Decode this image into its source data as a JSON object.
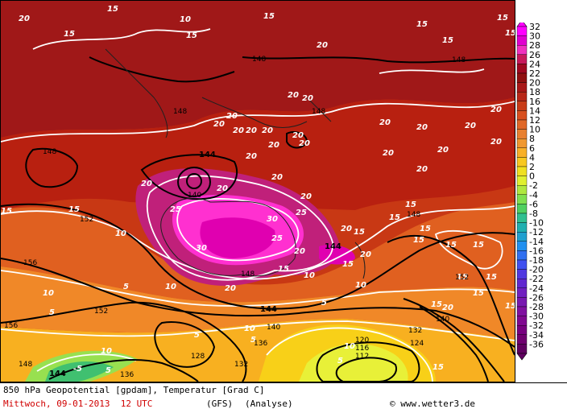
{
  "map": {
    "isotherm_labels": [
      "20",
      "15",
      "10",
      "5",
      "25",
      "30",
      "-5"
    ],
    "geopotential_labels": [
      "148",
      "144",
      "152",
      "156",
      "140",
      "136",
      "132",
      "128",
      "124",
      "120",
      "116",
      "112"
    ],
    "colors": {
      "c32": "#e000b0",
      "c30": "#ff30d0",
      "c26": "#c0207a",
      "c22": "#a01818",
      "c20": "#b82010",
      "c18": "#c83814",
      "c14": "#e06020",
      "c10": "#f08828",
      "c6": "#f8b020",
      "c4": "#f8d018",
      "c0": "#e8f038",
      "cm2": "#98e050",
      "cm6": "#40c070"
    }
  },
  "scale": {
    "ticks": [
      "32",
      "30",
      "28",
      "26",
      "24",
      "22",
      "20",
      "18",
      "16",
      "14",
      "12",
      "10",
      "8",
      "6",
      "4",
      "2",
      "0",
      "-2",
      "-4",
      "-6",
      "-8",
      "-10",
      "-12",
      "-14",
      "-16",
      "-18",
      "-20",
      "-22",
      "-24",
      "-26",
      "-28",
      "-30",
      "-32",
      "-34",
      "-36"
    ],
    "colors": [
      "#ff00ff",
      "#e000d0",
      "#f030c0",
      "#c8185c",
      "#a00820",
      "#901010",
      "#a81818",
      "#b82818",
      "#c83c18",
      "#d85020",
      "#e06828",
      "#e88030",
      "#f09830",
      "#f8b028",
      "#f8c820",
      "#f0e020",
      "#e0f030",
      "#b0e840",
      "#80e050",
      "#50d060",
      "#30c090",
      "#20b0b0",
      "#20a0d0",
      "#2090f0",
      "#3070f0",
      "#4050f0",
      "#5038e0",
      "#6028d0",
      "#7020c0",
      "#7818b0",
      "#8010a0",
      "#800890",
      "#780080",
      "#700070",
      "#600060"
    ]
  },
  "footer": {
    "title": "850 hPa Geopotential [gpdam], Temperatur [Grad C]",
    "date": "Mittwoch, 09-01-2013  12 UTC",
    "model": "(GFS)",
    "analysis": "(Analyse)",
    "credit": "© www.wetter3.de"
  }
}
